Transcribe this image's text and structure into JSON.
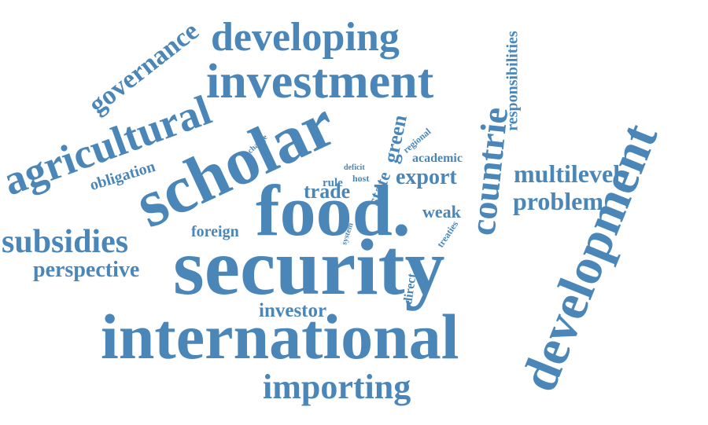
{
  "color": "#4a86b8",
  "words": {
    "security": "security",
    "food": "food.",
    "international": "international",
    "scholar": "scholar",
    "development": "development",
    "investment": "investment",
    "developing": "developing",
    "agricultural": "agricultural",
    "countrie": "countrie",
    "importing": "importing",
    "subsidies": "subsidies",
    "governance": "governance",
    "multilevel": "multilevel",
    "problem": "problem",
    "responsibilities": "responsibilities",
    "perspective": "perspective",
    "export": "export",
    "investor": "investor",
    "obligation": "obligation",
    "trade": "trade",
    "weak": "weak",
    "green": "green",
    "foreign": "foreign",
    "state": "state",
    "academic": "academic",
    "rule": "rule",
    "direct": "direct",
    "host": "host",
    "change": "change",
    "regional": "regional",
    "deficit": "deficit",
    "system": "system",
    "treaties": "treaties"
  }
}
